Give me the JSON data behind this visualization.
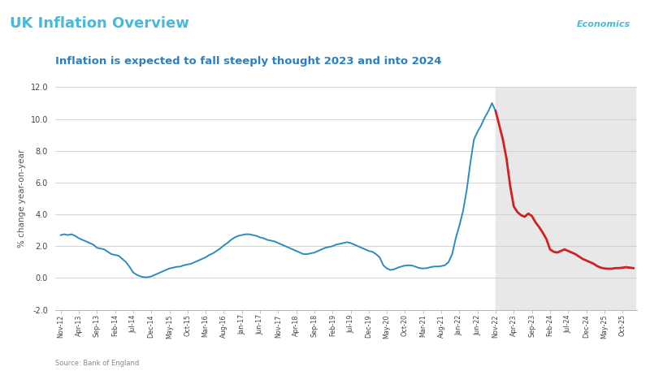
{
  "header_title": "UK Inflation Overview",
  "header_bg": "#0d2236",
  "header_text_color": "#4ab8d8",
  "chart_title": "Inflation is expected to fall steeply thought 2023 and into 2024",
  "chart_title_color": "#2b7fc2",
  "ylabel": "% change year-on-year",
  "source": "Source: Bank of England",
  "ylim": [
    -2.0,
    12.0
  ],
  "yticks": [
    -2.0,
    0.0,
    2.0,
    4.0,
    6.0,
    8.0,
    10.0,
    12.0
  ],
  "forecast_bg": "#e8e8e8",
  "blue_color": "#2b8cbf",
  "red_color": "#cc2222",
  "labels": [
    "Nov-12",
    "Apr-13",
    "Sep-13",
    "Feb-14",
    "Jul-14",
    "Dec-14",
    "May-15",
    "Oct-15",
    "Mar-16",
    "Aug-16",
    "Jan-17",
    "Jun-17",
    "Nov-17",
    "Apr-18",
    "Sep-18",
    "Feb-19",
    "Jul-19",
    "Dec-19",
    "May-20",
    "Oct-20",
    "Mar-21",
    "Aug-21",
    "Jan-22",
    "Jun-22",
    "Nov-22",
    "Apr-23",
    "Sep-23",
    "Feb-24",
    "Jul-24",
    "Dec-24",
    "May-25",
    "Oct-25"
  ],
  "label_indices": [
    0,
    5,
    10,
    15,
    20,
    25,
    30,
    35,
    40,
    45,
    50,
    55,
    60,
    65,
    70,
    75,
    80,
    85,
    90,
    95,
    100,
    105,
    110,
    115,
    120,
    125,
    130,
    135,
    140,
    145,
    150,
    155
  ],
  "values": [
    2.7,
    2.75,
    2.7,
    2.75,
    2.65,
    2.5,
    2.4,
    2.3,
    2.2,
    2.1,
    1.9,
    1.85,
    1.8,
    1.65,
    1.5,
    1.45,
    1.4,
    1.2,
    1.0,
    0.7,
    0.35,
    0.2,
    0.1,
    0.05,
    0.05,
    0.1,
    0.2,
    0.3,
    0.4,
    0.5,
    0.6,
    0.65,
    0.7,
    0.72,
    0.8,
    0.85,
    0.9,
    1.0,
    1.1,
    1.2,
    1.3,
    1.45,
    1.55,
    1.7,
    1.85,
    2.05,
    2.2,
    2.4,
    2.55,
    2.65,
    2.7,
    2.75,
    2.75,
    2.7,
    2.65,
    2.55,
    2.5,
    2.4,
    2.35,
    2.3,
    2.2,
    2.1,
    2.0,
    1.9,
    1.8,
    1.7,
    1.6,
    1.5,
    1.5,
    1.55,
    1.6,
    1.7,
    1.8,
    1.9,
    1.95,
    2.0,
    2.1,
    2.15,
    2.2,
    2.25,
    2.2,
    2.1,
    2.0,
    1.9,
    1.8,
    1.7,
    1.65,
    1.5,
    1.3,
    0.8,
    0.6,
    0.5,
    0.55,
    0.65,
    0.72,
    0.78,
    0.8,
    0.78,
    0.7,
    0.62,
    0.6,
    0.62,
    0.68,
    0.72,
    0.72,
    0.75,
    0.8,
    1.0,
    1.5,
    2.5,
    3.3,
    4.2,
    5.5,
    7.2,
    8.7,
    9.2,
    9.6,
    10.1,
    10.5,
    11.0,
    10.5
  ],
  "forecast_values": [
    10.5,
    9.6,
    8.7,
    7.5,
    5.8,
    4.5,
    4.15,
    3.95,
    3.85,
    4.05,
    3.9,
    3.5,
    3.2,
    2.85,
    2.45,
    1.8,
    1.65,
    1.6,
    1.7,
    1.8,
    1.7,
    1.6,
    1.5,
    1.35,
    1.2,
    1.1,
    1.0,
    0.9,
    0.75,
    0.65,
    0.6,
    0.58,
    0.58,
    0.62,
    0.62,
    0.65,
    0.68,
    0.65,
    0.62
  ],
  "logo_border_color": "#ffffff",
  "logo_retail_color": "#ffffff",
  "logo_econ_color": "#4ab8d8",
  "logo_dots_color": "#4ab8d8"
}
